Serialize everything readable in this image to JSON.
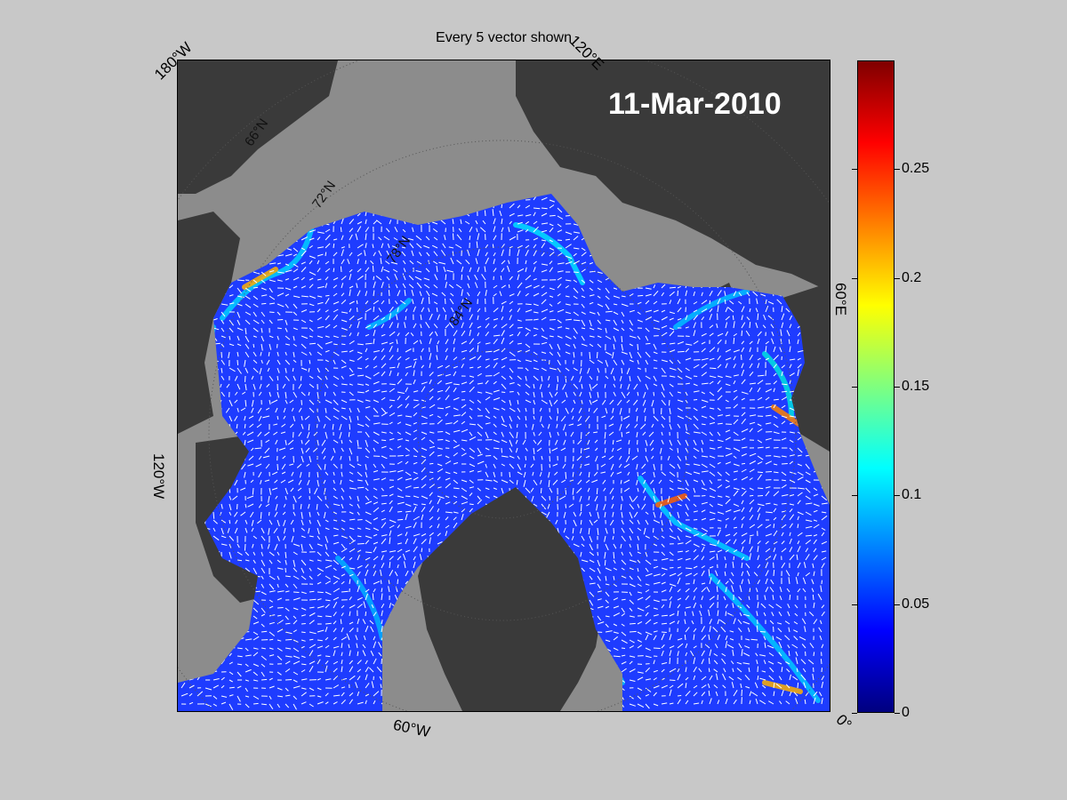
{
  "title": "Every 5 vector shown",
  "date_stamp": "11-Mar-2010",
  "longitude_labels": {
    "lon_180w": "180°W",
    "lon_120e": "120°E",
    "lon_60e": "60°E",
    "lon_120w": "120°W",
    "lon_60w": "60°W",
    "lon_0": "0°"
  },
  "latitude_labels": {
    "lat_66n": "66°N",
    "lat_72n": "72°N",
    "lat_78n": "78°N",
    "lat_84n": "84°N"
  },
  "colorbar": {
    "colormap": "jet",
    "min": 0,
    "max": 0.3,
    "ticks": [
      "0",
      "0.05",
      "0.1",
      "0.15",
      "0.2",
      "0.25"
    ],
    "tick_values": [
      0,
      0.05,
      0.1,
      0.15,
      0.2,
      0.25
    ]
  },
  "colors": {
    "land": "#3a3a3a",
    "no_data_ocean": "#8c8c8c",
    "ice_field": "#1e3cff",
    "vector_color": "#ffffff",
    "figure_background": "#c8c8c8"
  }
}
